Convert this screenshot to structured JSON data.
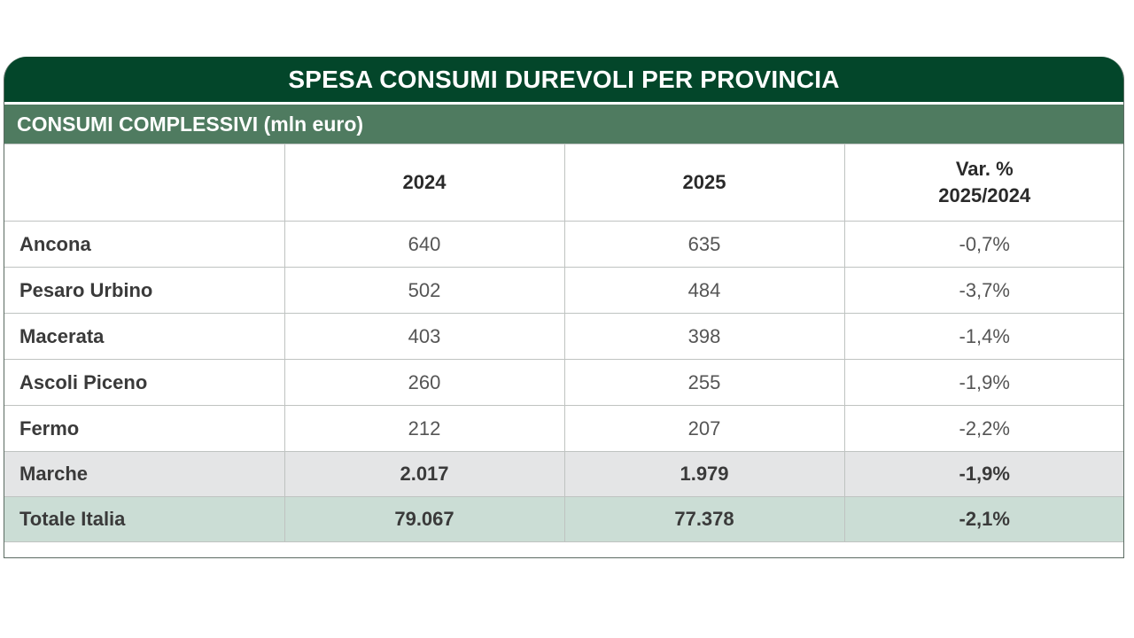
{
  "table": {
    "title": "SPESA CONSUMI DUREVOLI PER PROVINCIA",
    "subtitle": "CONSUMI COMPLESSIVI (mln euro)",
    "columns": {
      "col_2024": "2024",
      "col_2025": "2025",
      "col_var_line1": "Var. %",
      "col_var_line2": "2025/2024"
    },
    "rows": [
      {
        "name": "Ancona",
        "v2024": "640",
        "v2025": "635",
        "var": "-0,7%"
      },
      {
        "name": "Pesaro Urbino",
        "v2024": "502",
        "v2025": "484",
        "var": "-3,7%"
      },
      {
        "name": "Macerata",
        "v2024": "403",
        "v2025": "398",
        "var": "-1,4%"
      },
      {
        "name": "Ascoli Piceno",
        "v2024": "260",
        "v2025": "255",
        "var": "-1,9%"
      },
      {
        "name": "Fermo",
        "v2024": "212",
        "v2025": "207",
        "var": "-2,2%"
      }
    ],
    "totals": [
      {
        "name": "Marche",
        "v2024": "2.017",
        "v2025": "1.979",
        "var": "-1,9%"
      },
      {
        "name": "Totale Italia",
        "v2024": "79.067",
        "v2025": "77.378",
        "var": "-2,1%"
      }
    ],
    "colors": {
      "title_bg": "#03462a",
      "subtitle_bg": "#4f7b60",
      "marche_row_bg": "#e4e5e6",
      "italia_row_bg": "#cbddd5"
    }
  }
}
